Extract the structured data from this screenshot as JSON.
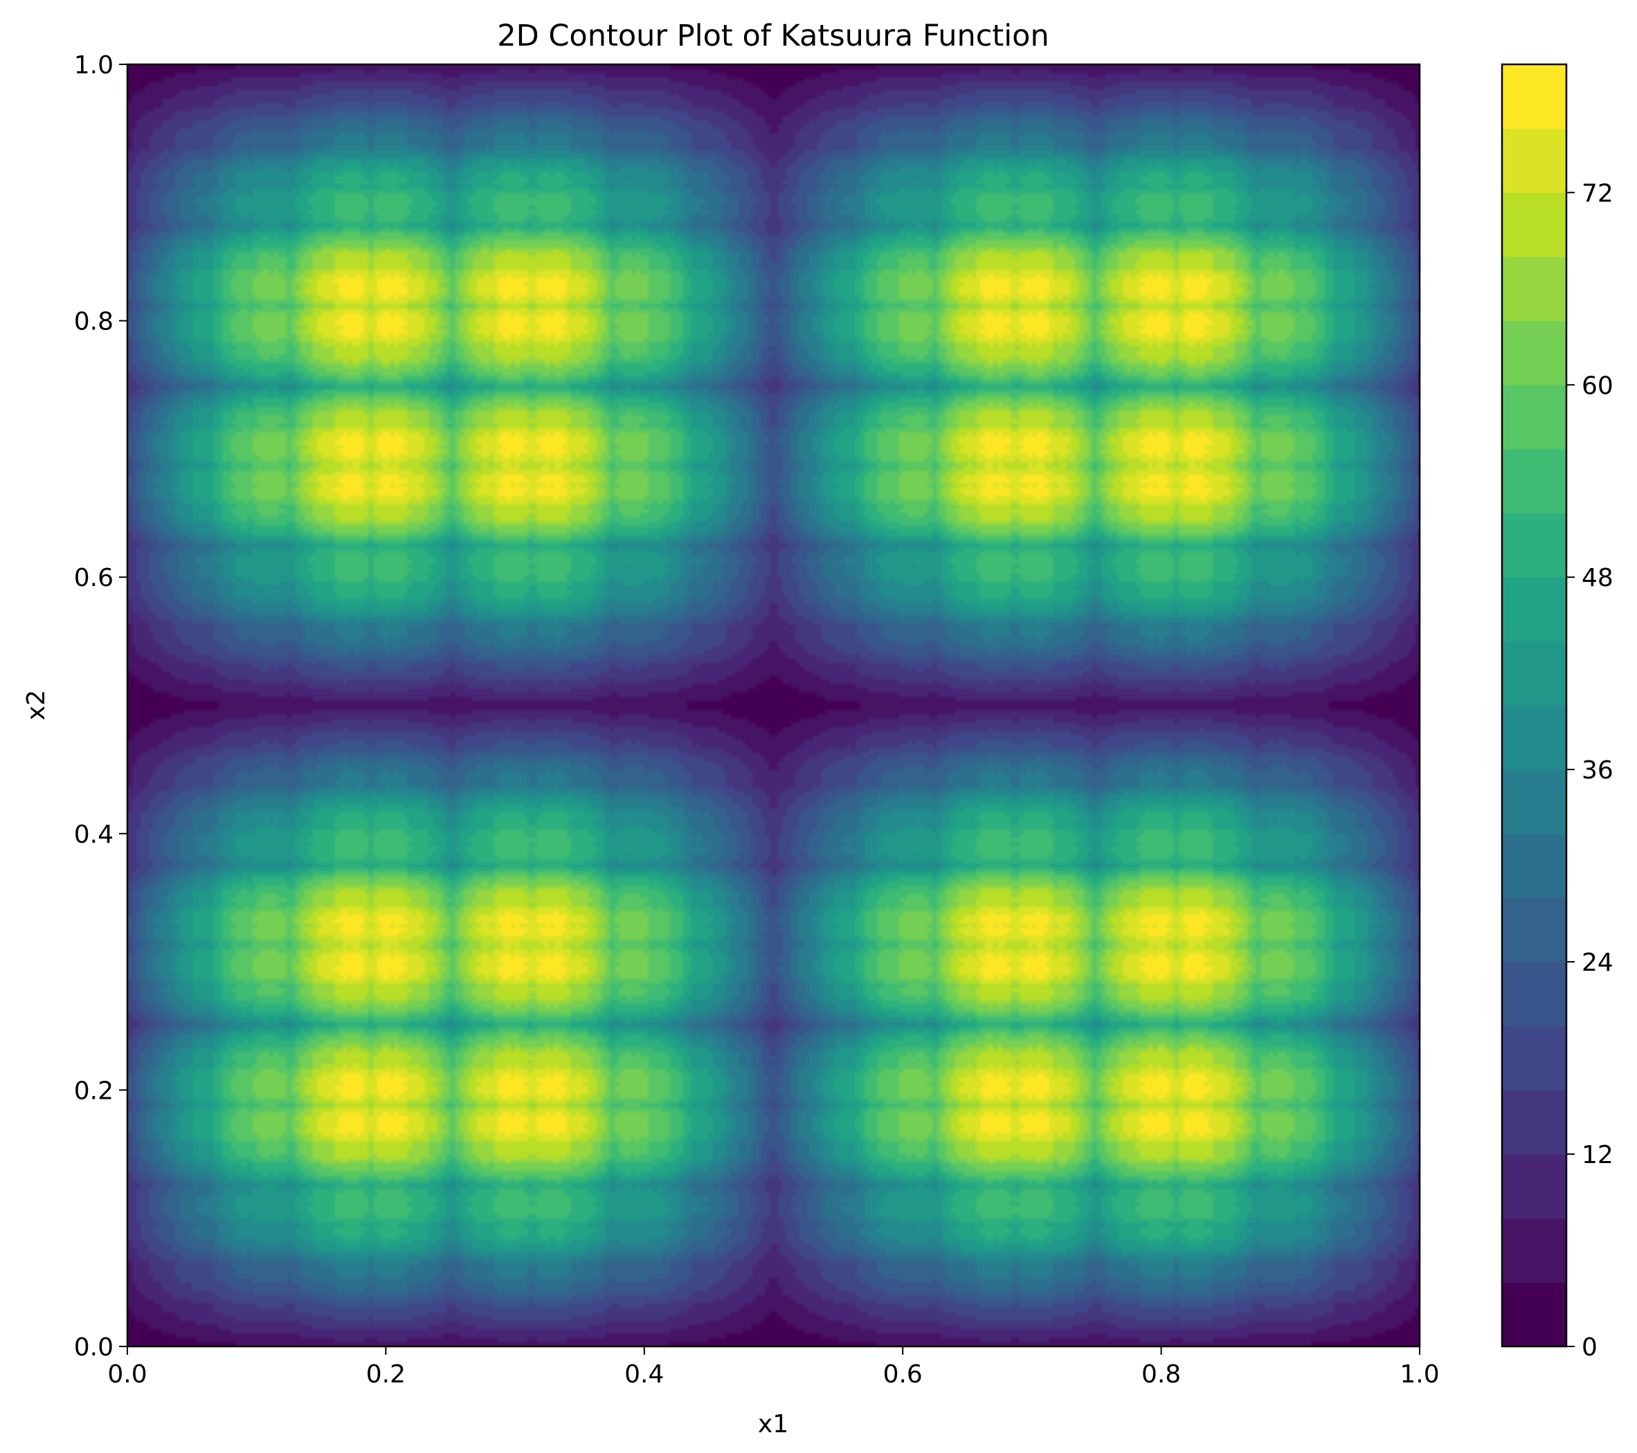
{
  "chart_data": {
    "type": "heatmap",
    "subtype": "filled-contour",
    "title": "2D Contour Plot of Katsuura Function",
    "xlabel": "x1",
    "ylabel": "x2",
    "xlim": [
      0.0,
      1.0
    ],
    "ylim": [
      0.0,
      1.0
    ],
    "x_ticks": [
      "0.0",
      "0.2",
      "0.4",
      "0.6",
      "0.8",
      "1.0"
    ],
    "y_ticks": [
      "0.0",
      "0.2",
      "0.4",
      "0.6",
      "0.8",
      "1.0"
    ],
    "colorbar": {
      "range": [
        0,
        80
      ],
      "levels": 20,
      "ticks": [
        "0",
        "12",
        "24",
        "36",
        "48",
        "60",
        "72"
      ],
      "colormap": "viridis"
    },
    "peaks": {
      "x": [
        0.17,
        0.2,
        0.3,
        0.33,
        0.67,
        0.7,
        0.8,
        0.83
      ],
      "y": [
        0.17,
        0.2,
        0.3,
        0.33,
        0.67,
        0.7,
        0.8,
        0.83
      ],
      "max_value": 78
    },
    "minimum_lines": {
      "x": [
        0.0,
        0.5,
        1.0
      ],
      "y": [
        0.0,
        0.5,
        1.0
      ]
    },
    "grid": false
  }
}
